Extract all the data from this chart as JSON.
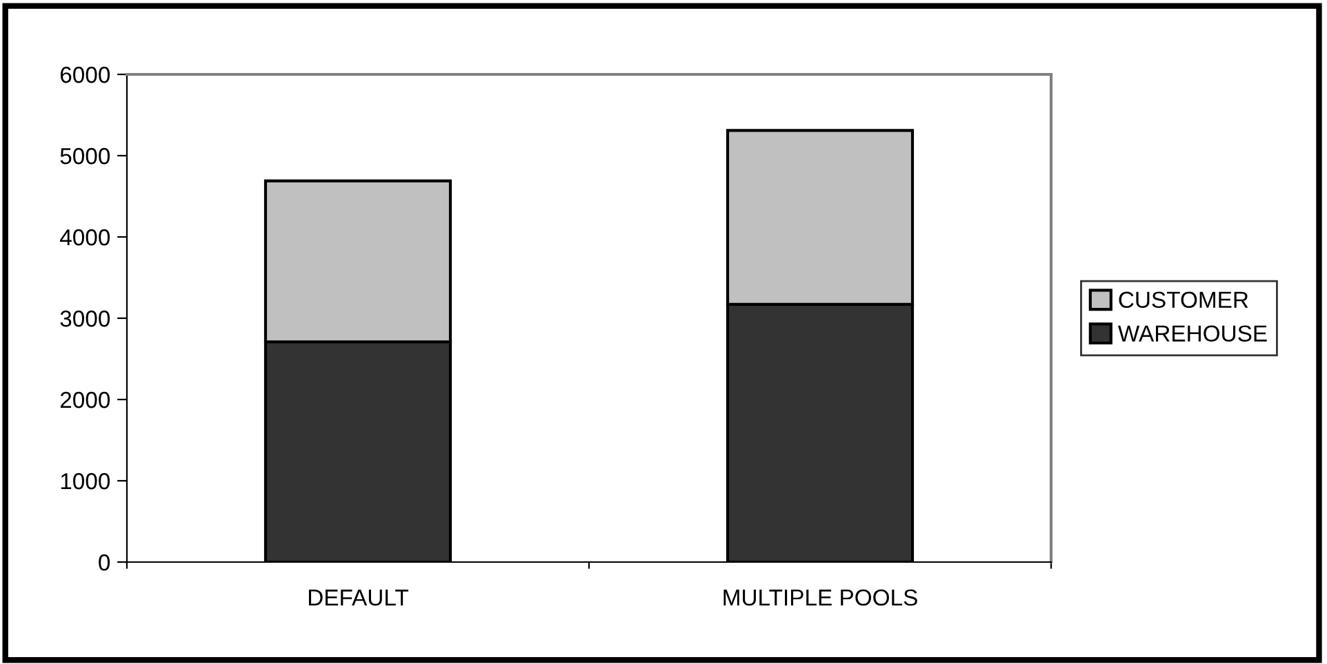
{
  "chart_data": {
    "type": "bar",
    "stacked": true,
    "categories": [
      "DEFAULT",
      "MULTIPLE POOLS"
    ],
    "series": [
      {
        "name": "WAREHOUSE",
        "color": "#333333",
        "values": [
          2710,
          3170
        ]
      },
      {
        "name": "CUSTOMER",
        "color": "#c0c0c0",
        "values": [
          1980,
          2140
        ]
      }
    ],
    "ylim": [
      0,
      6000
    ],
    "yticks": [
      0,
      1000,
      2000,
      3000,
      4000,
      5000,
      6000
    ],
    "grid": false,
    "legend": "right"
  }
}
